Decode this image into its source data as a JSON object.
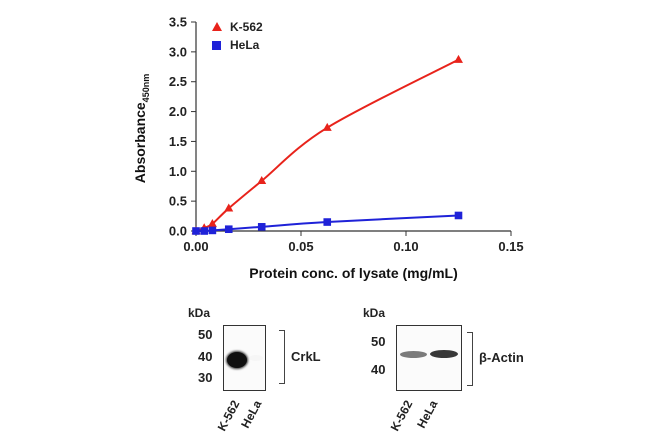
{
  "chart_data": {
    "type": "line",
    "xlabel": "Protein conc. of lysate (mg/mL)",
    "ylabel_main": "Absorbance",
    "ylabel_sub": "450nm",
    "xlim": [
      0,
      0.15
    ],
    "ylim": [
      0,
      3.5
    ],
    "x_ticks": [
      "0.00",
      "0.05",
      "0.10",
      "0.15"
    ],
    "y_ticks": [
      "0.0",
      "0.5",
      "1.0",
      "1.5",
      "2.0",
      "2.5",
      "3.0",
      "3.5"
    ],
    "legend_position": "top-left",
    "series": [
      {
        "name": "K-562",
        "color": "#e8231b",
        "marker": "triangle",
        "x": [
          0.0,
          0.0039,
          0.0078,
          0.0156,
          0.0313,
          0.0625,
          0.125
        ],
        "y": [
          0.0,
          0.05,
          0.12,
          0.38,
          0.84,
          1.73,
          2.87
        ]
      },
      {
        "name": "HeLa",
        "color": "#1f22d8",
        "marker": "square",
        "x": [
          0.0,
          0.0039,
          0.0078,
          0.0156,
          0.0313,
          0.0625,
          0.125
        ],
        "y": [
          0.0,
          0.0,
          0.01,
          0.03,
          0.07,
          0.15,
          0.26
        ]
      }
    ]
  },
  "blots": [
    {
      "id": "crkl",
      "kda_title": "kDa",
      "markers": [
        "50",
        "40",
        "30"
      ],
      "protein": "CrkL",
      "lanes": [
        "K-562",
        "HeLa"
      ],
      "band_intensity": [
        1.0,
        0.03
      ]
    },
    {
      "id": "actin",
      "kda_title": "kDa",
      "markers": [
        "50",
        "40"
      ],
      "protein": "β-Actin",
      "lanes": [
        "K-562",
        "HeLa"
      ],
      "band_intensity": [
        0.7,
        0.9
      ]
    }
  ]
}
